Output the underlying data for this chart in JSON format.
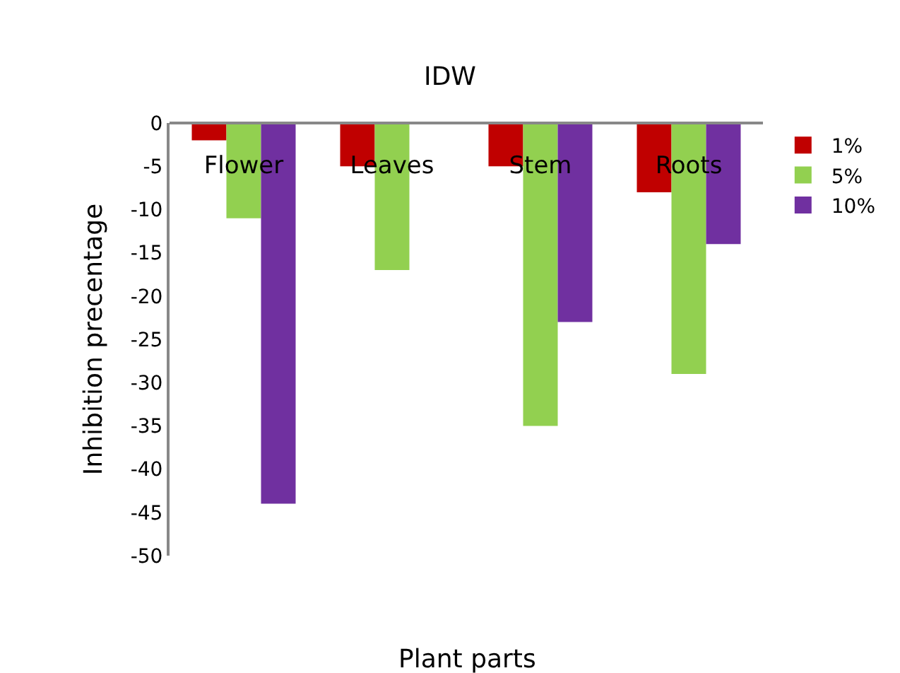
{
  "chart_data": {
    "type": "bar",
    "title": "IDW",
    "xlabel": "Plant parts",
    "ylabel": "Inhibition precentage",
    "categories": [
      "Flower",
      "Leaves",
      "Stem",
      "Roots"
    ],
    "series": [
      {
        "name": "1%",
        "color": "#c00000",
        "values": [
          -2,
          -5,
          -5,
          -8
        ]
      },
      {
        "name": "5%",
        "color": "#92d050",
        "values": [
          -11,
          -17,
          -35,
          -29
        ]
      },
      {
        "name": "10%",
        "color": "#7030a0",
        "values": [
          -44,
          null,
          -23,
          -14
        ]
      }
    ],
    "ylim": [
      -50,
      0
    ],
    "yticks": [
      0,
      -5,
      -10,
      -15,
      -20,
      -25,
      -30,
      -35,
      -40,
      -45,
      -50
    ],
    "legend": "right"
  }
}
